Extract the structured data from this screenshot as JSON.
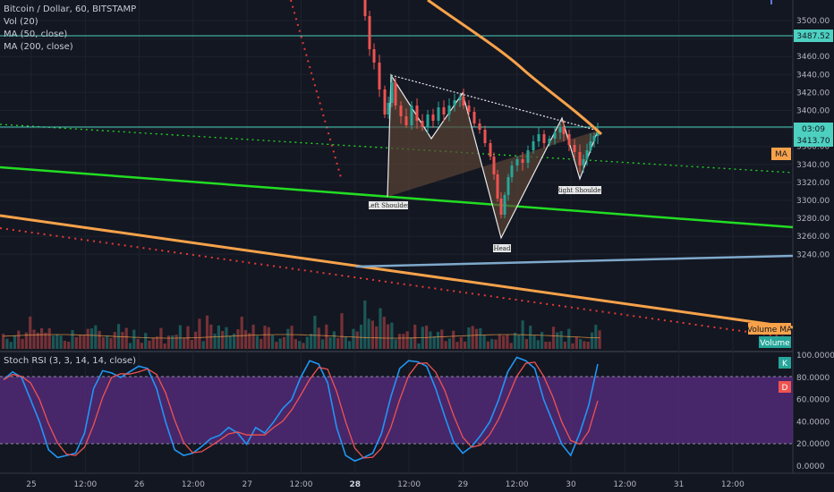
{
  "header": {
    "symbol_line": "Bitcoin / Dollar, 60, BITSTAMP",
    "vol_line": "Vol (20)",
    "ma50_line": "MA (50, close)",
    "ma200_line": "MA (200, close)"
  },
  "stoch": {
    "label": "Stoch RSI (3, 3, 14, 14, close)",
    "k_tag": "K",
    "d_tag": "D"
  },
  "price_axis": {
    "ticks": [
      "3500.00",
      "3480.00",
      "3460.00",
      "3440.00",
      "3420.00",
      "3400.00",
      "3380.00",
      "3360.00",
      "3340.00",
      "3320.00",
      "3300.00",
      "3280.00",
      "3260.00",
      "3240.00"
    ],
    "tag_upper": "3487.52",
    "tag_time": "03:09",
    "tag_last": "3413.70",
    "tag_ma": "MA",
    "tag_volume_ma": "Volume MA",
    "tag_volume": "Volume"
  },
  "stoch_axis": {
    "ticks": [
      "100.0000",
      "80.0000",
      "60.0000",
      "40.0000",
      "20.0000",
      "0.0000"
    ]
  },
  "time_axis": {
    "ticks": [
      "25",
      "12:00",
      "26",
      "12:00",
      "27",
      "12:00",
      "28",
      "12:00",
      "29",
      "12:00",
      "30",
      "12:00",
      "31",
      "12:00"
    ],
    "bold_tick": "28"
  },
  "annotations": {
    "left_shoulder": "Left Shoulder",
    "head": "Head",
    "right_shoulder": "Right Shoulder"
  },
  "colors": {
    "background": "#131722",
    "up_candle": "#26a69a",
    "down_candle": "#ef5350",
    "ma50": "#f7a24a",
    "green_trend": "#22dd22",
    "stoch_k": "#2196f3",
    "stoch_d": "#ef5350",
    "stoch_band": "#5b2c83",
    "pattern_fill": "#5a4535",
    "horizontal_line": "#4dd0c0"
  }
}
